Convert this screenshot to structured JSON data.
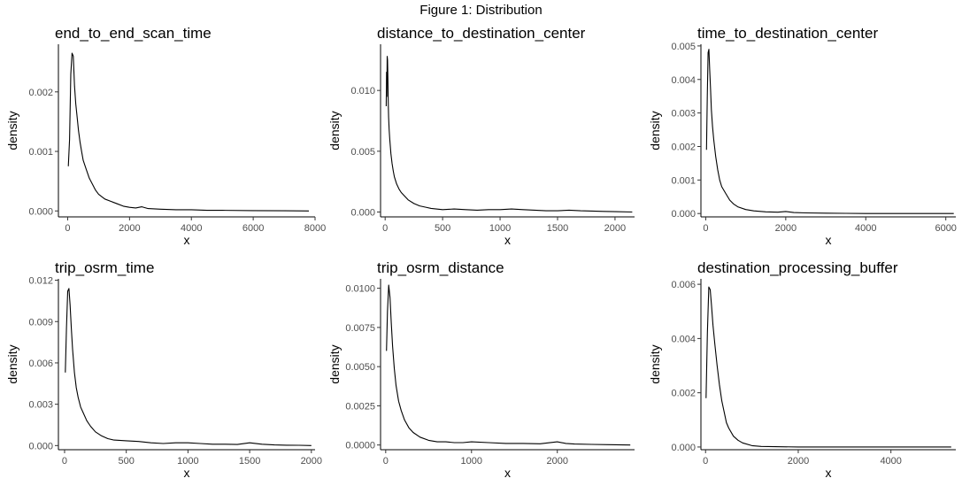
{
  "figure": {
    "title": "Figure 1: Distribution"
  },
  "chart_data": [
    {
      "type": "line",
      "title": "end_to_end_scan_time",
      "xlabel": "x",
      "ylabel": "density",
      "xlim": [
        -300,
        8000
      ],
      "ylim": [
        -0.0001,
        0.0028
      ],
      "xticks": [
        0,
        2000,
        4000,
        6000,
        8000
      ],
      "xtick_labels": [
        "0",
        "2000",
        "4000",
        "6000",
        "8000"
      ],
      "yticks": [
        0,
        0.001,
        0.002
      ],
      "ytick_labels": [
        "0.000",
        "0.001",
        "0.002"
      ],
      "series": [
        {
          "x": [
            20,
            60,
            100,
            140,
            180,
            220,
            260,
            300,
            350,
            400,
            450,
            500,
            600,
            700,
            800,
            900,
            1000,
            1200,
            1400,
            1600,
            1800,
            2000,
            2200,
            2400,
            2600,
            3000,
            3500,
            4000,
            4500,
            5000,
            6000,
            7000,
            7800
          ],
          "y": [
            0.00075,
            0.0012,
            0.0023,
            0.00265,
            0.0026,
            0.0021,
            0.0018,
            0.0016,
            0.00135,
            0.00115,
            0.001,
            0.00085,
            0.0007,
            0.00055,
            0.00045,
            0.00035,
            0.00028,
            0.0002,
            0.00016,
            0.00012,
            8e-05,
            6e-05,
            5e-05,
            7e-05,
            4e-05,
            3e-05,
            2e-05,
            2e-05,
            1e-05,
            1e-05,
            5e-06,
            3e-06,
            0.0
          ]
        }
      ]
    },
    {
      "type": "line",
      "title": "distance_to_destination_center",
      "xlabel": "x",
      "ylabel": "density",
      "xlim": [
        -40,
        2170
      ],
      "ylim": [
        -0.0004,
        0.0138
      ],
      "xticks": [
        0,
        500,
        1000,
        1500,
        2000
      ],
      "xtick_labels": [
        "0",
        "500",
        "1000",
        "1500",
        "2000"
      ],
      "yticks": [
        0,
        0.005,
        0.01
      ],
      "ytick_labels": [
        "0.000",
        "0.005",
        "0.010"
      ],
      "series": [
        {
          "x": [
            9,
            12,
            15,
            18,
            21,
            24,
            27,
            30,
            35,
            40,
            50,
            60,
            70,
            80,
            100,
            120,
            140,
            160,
            200,
            250,
            300,
            350,
            400,
            500,
            600,
            700,
            800,
            900,
            1000,
            1100,
            1200,
            1300,
            1400,
            1500,
            1600,
            1700,
            1800,
            1900,
            2000,
            2150
          ],
          "y": [
            0.0087,
            0.0115,
            0.0095,
            0.0128,
            0.0125,
            0.011,
            0.009,
            0.0078,
            0.0068,
            0.006,
            0.0048,
            0.004,
            0.0034,
            0.0029,
            0.0023,
            0.0019,
            0.0016,
            0.0014,
            0.001,
            0.0007,
            0.0005,
            0.0004,
            0.0003,
            0.0002,
            0.00025,
            0.0002,
            0.00015,
            0.0002,
            0.0002,
            0.00025,
            0.0002,
            0.00015,
            0.0001,
            0.0001,
            0.00015,
            0.0001,
            8e-05,
            5e-05,
            3e-05,
            0.0
          ]
        }
      ]
    },
    {
      "type": "line",
      "title": "time_to_destination_center",
      "xlabel": "x",
      "ylabel": "density",
      "xlim": [
        -120,
        6250
      ],
      "ylim": [
        -0.0001,
        0.00505
      ],
      "xticks": [
        0,
        2000,
        4000,
        6000
      ],
      "xtick_labels": [
        "0",
        "2000",
        "4000",
        "6000"
      ],
      "yticks": [
        0,
        0.001,
        0.002,
        0.003,
        0.004,
        0.005
      ],
      "ytick_labels": [
        "0.000",
        "0.001",
        "0.002",
        "0.003",
        "0.004",
        "0.005"
      ],
      "series": [
        {
          "x": [
            20,
            40,
            60,
            80,
            100,
            120,
            140,
            170,
            200,
            250,
            300,
            350,
            400,
            500,
            600,
            700,
            800,
            1000,
            1200,
            1500,
            1800,
            2000,
            2200,
            2500,
            3000,
            3500,
            4000,
            5000,
            6200
          ],
          "y": [
            0.0019,
            0.0035,
            0.0048,
            0.0049,
            0.0043,
            0.0037,
            0.0031,
            0.0026,
            0.0022,
            0.0017,
            0.0013,
            0.001,
            0.0008,
            0.0006,
            0.0004,
            0.00028,
            0.0002,
            0.00012,
            8e-05,
            5e-05,
            4e-05,
            6e-05,
            3e-05,
            2e-05,
            1e-05,
            5e-06,
            0.0,
            0.0,
            0.0
          ]
        }
      ]
    },
    {
      "type": "line",
      "title": "trip_osrm_time",
      "xlabel": "x",
      "ylabel": "density",
      "xlim": [
        -50,
        2030
      ],
      "ylim": [
        -0.0003,
        0.0121
      ],
      "xticks": [
        0,
        500,
        1000,
        1500,
        2000
      ],
      "xtick_labels": [
        "0",
        "500",
        "1000",
        "1500",
        "2000"
      ],
      "yticks": [
        0,
        0.003,
        0.006,
        0.009,
        0.012
      ],
      "ytick_labels": [
        "0.000",
        "0.003",
        "0.006",
        "0.009",
        "0.012"
      ],
      "series": [
        {
          "x": [
            6,
            15,
            25,
            35,
            45,
            55,
            65,
            80,
            95,
            110,
            130,
            150,
            180,
            210,
            250,
            300,
            350,
            400,
            500,
            600,
            700,
            800,
            900,
            1000,
            1100,
            1200,
            1300,
            1400,
            1500,
            1600,
            1700,
            1800,
            1900,
            2000
          ],
          "y": [
            0.0053,
            0.0085,
            0.0112,
            0.0114,
            0.0102,
            0.0085,
            0.007,
            0.0053,
            0.0042,
            0.0035,
            0.0028,
            0.0024,
            0.0018,
            0.0014,
            0.001,
            0.0007,
            0.0005,
            0.0004,
            0.00035,
            0.0003,
            0.0002,
            0.00015,
            0.0002,
            0.0002,
            0.00015,
            0.0001,
            0.0001,
            8e-05,
            0.0002,
            0.0001,
            5e-05,
            3e-05,
            2e-05,
            0.0
          ]
        }
      ]
    },
    {
      "type": "line",
      "title": "trip_osrm_distance",
      "xlabel": "x",
      "ylabel": "density",
      "xlim": [
        -60,
        2900
      ],
      "ylim": [
        -0.0003,
        0.0106
      ],
      "xticks": [
        0,
        1000,
        2000
      ],
      "xtick_labels": [
        "0",
        "1000",
        "2000"
      ],
      "yticks": [
        0,
        0.0025,
        0.005,
        0.0075,
        0.01
      ],
      "ytick_labels": [
        "0.0000",
        "0.0025",
        "0.0050",
        "0.0075",
        "0.0100"
      ],
      "series": [
        {
          "x": [
            9,
            20,
            35,
            50,
            65,
            80,
            100,
            120,
            150,
            180,
            220,
            270,
            320,
            400,
            500,
            600,
            700,
            800,
            900,
            1000,
            1200,
            1400,
            1600,
            1800,
            2000,
            2100,
            2200,
            2400,
            2600,
            2850
          ],
          "y": [
            0.006,
            0.0085,
            0.0102,
            0.0094,
            0.0078,
            0.0063,
            0.0049,
            0.0038,
            0.0028,
            0.0022,
            0.0016,
            0.0011,
            0.0008,
            0.0005,
            0.0003,
            0.0002,
            0.0002,
            0.00015,
            0.00015,
            0.0002,
            0.00015,
            0.0001,
            0.0001,
            8e-05,
            0.0002,
            0.0001,
            6e-05,
            4e-05,
            2e-05,
            0.0
          ]
        }
      ]
    },
    {
      "type": "line",
      "title": "destination_processing_buffer",
      "xlabel": "x",
      "ylabel": "density",
      "xlim": [
        -100,
        5400
      ],
      "ylim": [
        -0.0001,
        0.0062
      ],
      "xticks": [
        0,
        2000,
        4000
      ],
      "xtick_labels": [
        "0",
        "2000",
        "4000"
      ],
      "yticks": [
        0,
        0.002,
        0.004,
        0.006
      ],
      "ytick_labels": [
        "0.000",
        "0.002",
        "0.004",
        "0.006"
      ],
      "series": [
        {
          "x": [
            10,
            40,
            70,
            100,
            130,
            160,
            200,
            250,
            300,
            350,
            400,
            450,
            500,
            600,
            700,
            800,
            1000,
            1200,
            1500,
            2000,
            2500,
            3000,
            4000,
            5300
          ],
          "y": [
            0.0018,
            0.0042,
            0.0059,
            0.0058,
            0.0052,
            0.0045,
            0.0038,
            0.003,
            0.0023,
            0.0017,
            0.0013,
            0.0009,
            0.0007,
            0.0004,
            0.00025,
            0.00015,
            5e-05,
            2e-05,
            1e-05,
            0.0,
            0.0,
            0.0,
            0.0,
            0.0
          ]
        }
      ]
    }
  ]
}
